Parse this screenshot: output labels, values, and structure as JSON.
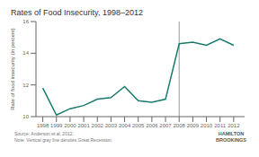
{
  "chart_data": {
    "type": "line",
    "title": "Rates of Food Insecurity, 1998–2012",
    "y_label": "Rate of food insecurity (in percent)",
    "x": [
      1998,
      1999,
      2000,
      2001,
      2002,
      2003,
      2004,
      2005,
      2006,
      2007,
      2008,
      2009,
      2010,
      2011,
      2012
    ],
    "values": [
      11.8,
      10.1,
      10.5,
      10.7,
      11.1,
      11.2,
      11.9,
      11.0,
      10.9,
      11.1,
      14.6,
      14.7,
      14.5,
      14.9,
      14.5
    ],
    "color": "#1a7a6e",
    "xlim": [
      1997.5,
      2012.8
    ],
    "xticks": [
      1998,
      1999,
      2000,
      2001,
      2002,
      2003,
      2004,
      2005,
      2006,
      2007,
      2008,
      2009,
      2010,
      2011,
      2012
    ],
    "ylim": [
      10,
      16
    ],
    "yticks": [
      10,
      12,
      14,
      16
    ],
    "grid": false,
    "vline": {
      "x": 2008,
      "color": "#999999"
    },
    "annotations": [
      "Source: Anderson et al. 2012.",
      "Note: Vertical gray line denotes Great Recession.",
      "HAMILTON\nBROOKINGS"
    ]
  }
}
